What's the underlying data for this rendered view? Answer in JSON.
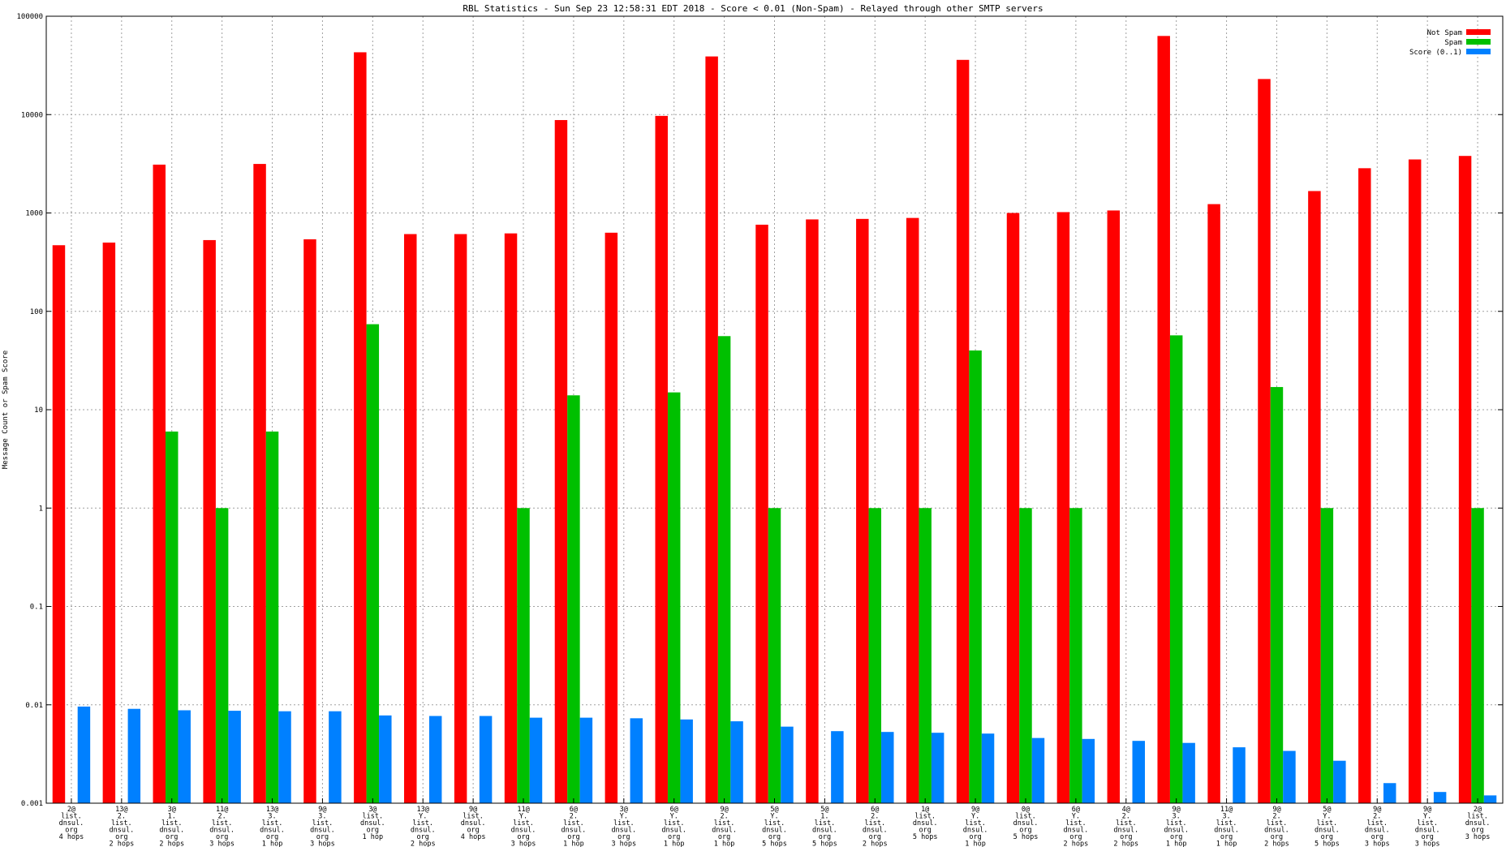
{
  "chart_data": {
    "type": "bar",
    "title": "RBL Statistics - Sun Sep 23 12:58:31 EDT 2018 - Score < 0.01 (Non-Spam) - Relayed through other SMTP servers",
    "ylabel": "Message Count or Spam Score",
    "xlabel": "",
    "yscale": "log",
    "ylim": [
      0.001,
      100000
    ],
    "yticks": [
      "0.001",
      "0.01",
      "0.1",
      "1",
      "10",
      "100",
      "1000",
      "10000",
      "100000"
    ],
    "grid": true,
    "legend_position": "top-right",
    "categories": [
      [
        "2@",
        "list.",
        "dnsul.",
        "org",
        "4 hops"
      ],
      [
        "13@",
        "2.",
        "list.",
        "dnsul.",
        "org",
        "2 hops"
      ],
      [
        "3@",
        "1.",
        "list.",
        "dnsul.",
        "org",
        "2 hops"
      ],
      [
        "11@",
        "2.",
        "list.",
        "dnsul.",
        "org",
        "3 hops"
      ],
      [
        "13@",
        "3.",
        "list.",
        "dnsul.",
        "org",
        "1 hop"
      ],
      [
        "9@",
        "3.",
        "list.",
        "dnsul.",
        "org",
        "3 hops"
      ],
      [
        "3@",
        "list.",
        "dnsul.",
        "org",
        "1 hop"
      ],
      [
        "13@",
        "Y.",
        "list.",
        "dnsul.",
        "org",
        "2 hops"
      ],
      [
        "9@",
        "list.",
        "dnsul.",
        "org",
        "4 hops"
      ],
      [
        "11@",
        "Y.",
        "list.",
        "dnsul.",
        "org",
        "3 hops"
      ],
      [
        "6@",
        "2.",
        "list.",
        "dnsul.",
        "org",
        "1 hop"
      ],
      [
        "3@",
        "Y.",
        "list.",
        "dnsul.",
        "org",
        "3 hops"
      ],
      [
        "6@",
        "Y.",
        "list.",
        "dnsul.",
        "org",
        "1 hop"
      ],
      [
        "9@",
        "2.",
        "list.",
        "dnsul.",
        "org",
        "1 hop"
      ],
      [
        "5@",
        "Y.",
        "list.",
        "dnsul.",
        "org",
        "5 hops"
      ],
      [
        "5@",
        "1.",
        "list.",
        "dnsul.",
        "org",
        "5 hops"
      ],
      [
        "6@",
        "2.",
        "list.",
        "dnsul.",
        "org",
        "2 hops"
      ],
      [
        "1@",
        "list.",
        "dnsul.",
        "org",
        "5 hops"
      ],
      [
        "9@",
        "Y.",
        "list.",
        "dnsul.",
        "org",
        "1 hop"
      ],
      [
        "0@",
        "list.",
        "dnsul.",
        "org",
        "5 hops"
      ],
      [
        "6@",
        "Y.",
        "list.",
        "dnsul.",
        "org",
        "2 hops"
      ],
      [
        "4@",
        "2.",
        "list.",
        "dnsul.",
        "org",
        "2 hops"
      ],
      [
        "9@",
        "3.",
        "list.",
        "dnsul.",
        "org",
        "1 hop"
      ],
      [
        "11@",
        "3.",
        "list.",
        "dnsul.",
        "org",
        "1 hop"
      ],
      [
        "9@",
        "2.",
        "list.",
        "dnsul.",
        "org",
        "2 hops"
      ],
      [
        "5@",
        "Y.",
        "list.",
        "dnsul.",
        "org",
        "5 hops"
      ],
      [
        "9@",
        "2.",
        "list.",
        "dnsul.",
        "org",
        "3 hops"
      ],
      [
        "9@",
        "Y.",
        "list.",
        "dnsul.",
        "org",
        "3 hops"
      ],
      [
        "2@",
        "list.",
        "dnsul.",
        "org",
        "3 hops"
      ]
    ],
    "series": [
      {
        "name": "Not Spam",
        "color": "#ff0000",
        "values": [
          470,
          500,
          3100,
          530,
          3150,
          540,
          43000,
          610,
          610,
          620,
          8800,
          630,
          9700,
          39000,
          760,
          860,
          870,
          890,
          36000,
          1000,
          1020,
          1060,
          63000,
          1230,
          23000,
          1670,
          2850,
          3500,
          3800
        ]
      },
      {
        "name": "Spam",
        "color": "#00c000",
        "values": [
          null,
          null,
          6,
          1,
          6,
          null,
          74,
          null,
          null,
          1,
          14,
          null,
          15,
          56,
          1,
          null,
          1,
          1,
          40,
          1,
          1,
          null,
          57,
          null,
          17,
          1,
          null,
          null,
          1
        ]
      },
      {
        "name": "Score (0..1)",
        "color": "#0080ff",
        "values": [
          0.0096,
          0.0091,
          0.0088,
          0.0087,
          0.0086,
          0.0086,
          0.0078,
          0.0077,
          0.0077,
          0.0074,
          0.0074,
          0.0073,
          0.0071,
          0.0068,
          0.006,
          0.0054,
          0.0053,
          0.0052,
          0.0051,
          0.0046,
          0.0045,
          0.0043,
          0.0041,
          0.0037,
          0.0034,
          0.0027,
          0.0016,
          0.0013,
          0.0012
        ]
      }
    ]
  }
}
